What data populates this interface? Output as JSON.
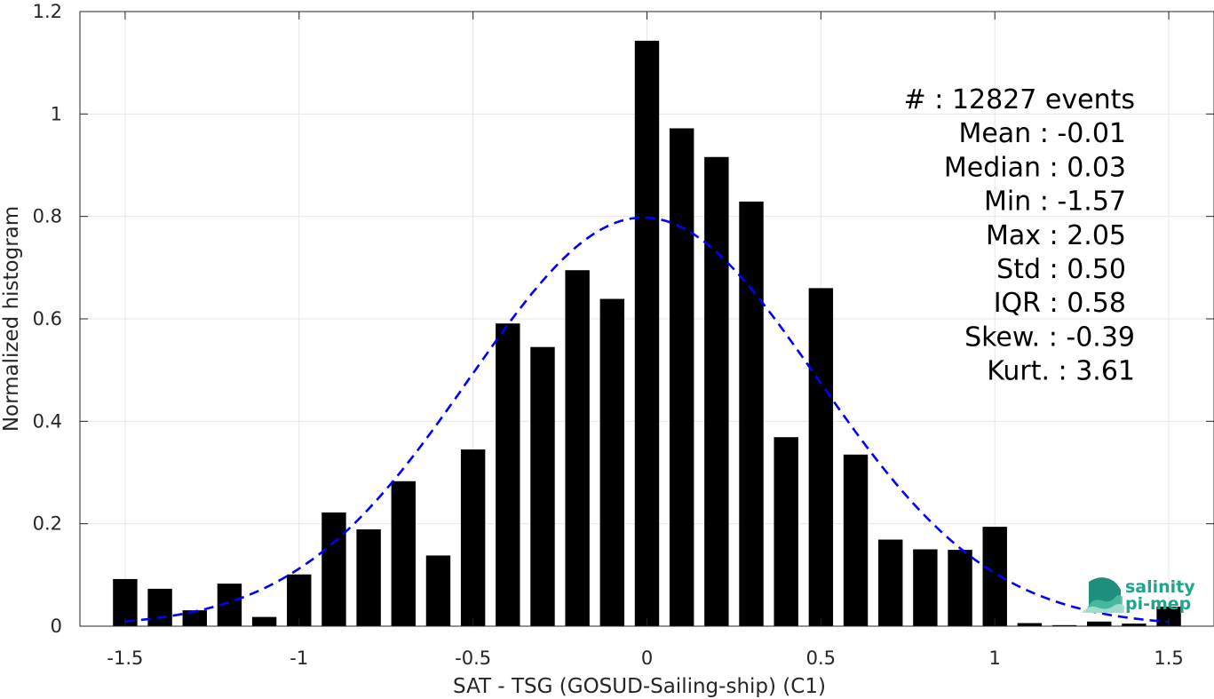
{
  "chart_data": {
    "type": "bar",
    "title": "",
    "xlabel": "SAT - TSG (GOSUD-Sailing-ship) (C1)",
    "ylabel": "Normalized histogram",
    "xlim": [
      -1.63,
      1.63
    ],
    "ylim": [
      0,
      1.2
    ],
    "xticks": [
      -1.5,
      -1,
      -0.5,
      0,
      0.5,
      1,
      1.5
    ],
    "xtick_labels": [
      "-1.5",
      "-1",
      "-0.5",
      "0",
      "0.5",
      "1",
      "1.5"
    ],
    "yticks": [
      0,
      0.2,
      0.4,
      0.6,
      0.8,
      1,
      1.2
    ],
    "ytick_labels": [
      "0",
      "0.2",
      "0.4",
      "0.6",
      "0.8",
      "1",
      "1.2"
    ],
    "grid": true,
    "bar_color": "#000000",
    "bar_width": 0.07,
    "bars": {
      "x": [
        -1.5,
        -1.4,
        -1.3,
        -1.2,
        -1.1,
        -1.0,
        -0.9,
        -0.8,
        -0.7,
        -0.6,
        -0.5,
        -0.4,
        -0.3,
        -0.2,
        -0.1,
        0.0,
        0.1,
        0.2,
        0.3,
        0.4,
        0.5,
        0.6,
        0.7,
        0.8,
        0.9,
        1.0,
        1.1,
        1.2,
        1.3,
        1.4,
        1.5
      ],
      "values": [
        0.092,
        0.073,
        0.031,
        0.083,
        0.018,
        0.101,
        0.222,
        0.189,
        0.283,
        0.138,
        0.345,
        0.591,
        0.545,
        0.695,
        0.639,
        1.143,
        0.972,
        0.916,
        0.829,
        0.369,
        0.66,
        0.335,
        0.169,
        0.15,
        0.149,
        0.194,
        0.006,
        0.002,
        0.009,
        0.005,
        0.038
      ]
    },
    "fit_curve": {
      "type": "gaussian",
      "mean": -0.01,
      "std": 0.5,
      "color": "#0000ff",
      "style": "dashed"
    },
    "annotations": [
      "#  : 12827 events",
      "Mean : -0.01",
      "Median : 0.03",
      "Min : -1.57",
      "Max : 2.05",
      "Std : 0.50",
      "IQR : 0.58",
      "Skew. : -0.39",
      "Kurt. : 3.61"
    ]
  },
  "logo": {
    "line1": "salinity",
    "line2": "pi-mep",
    "color": "#1fa58a"
  }
}
